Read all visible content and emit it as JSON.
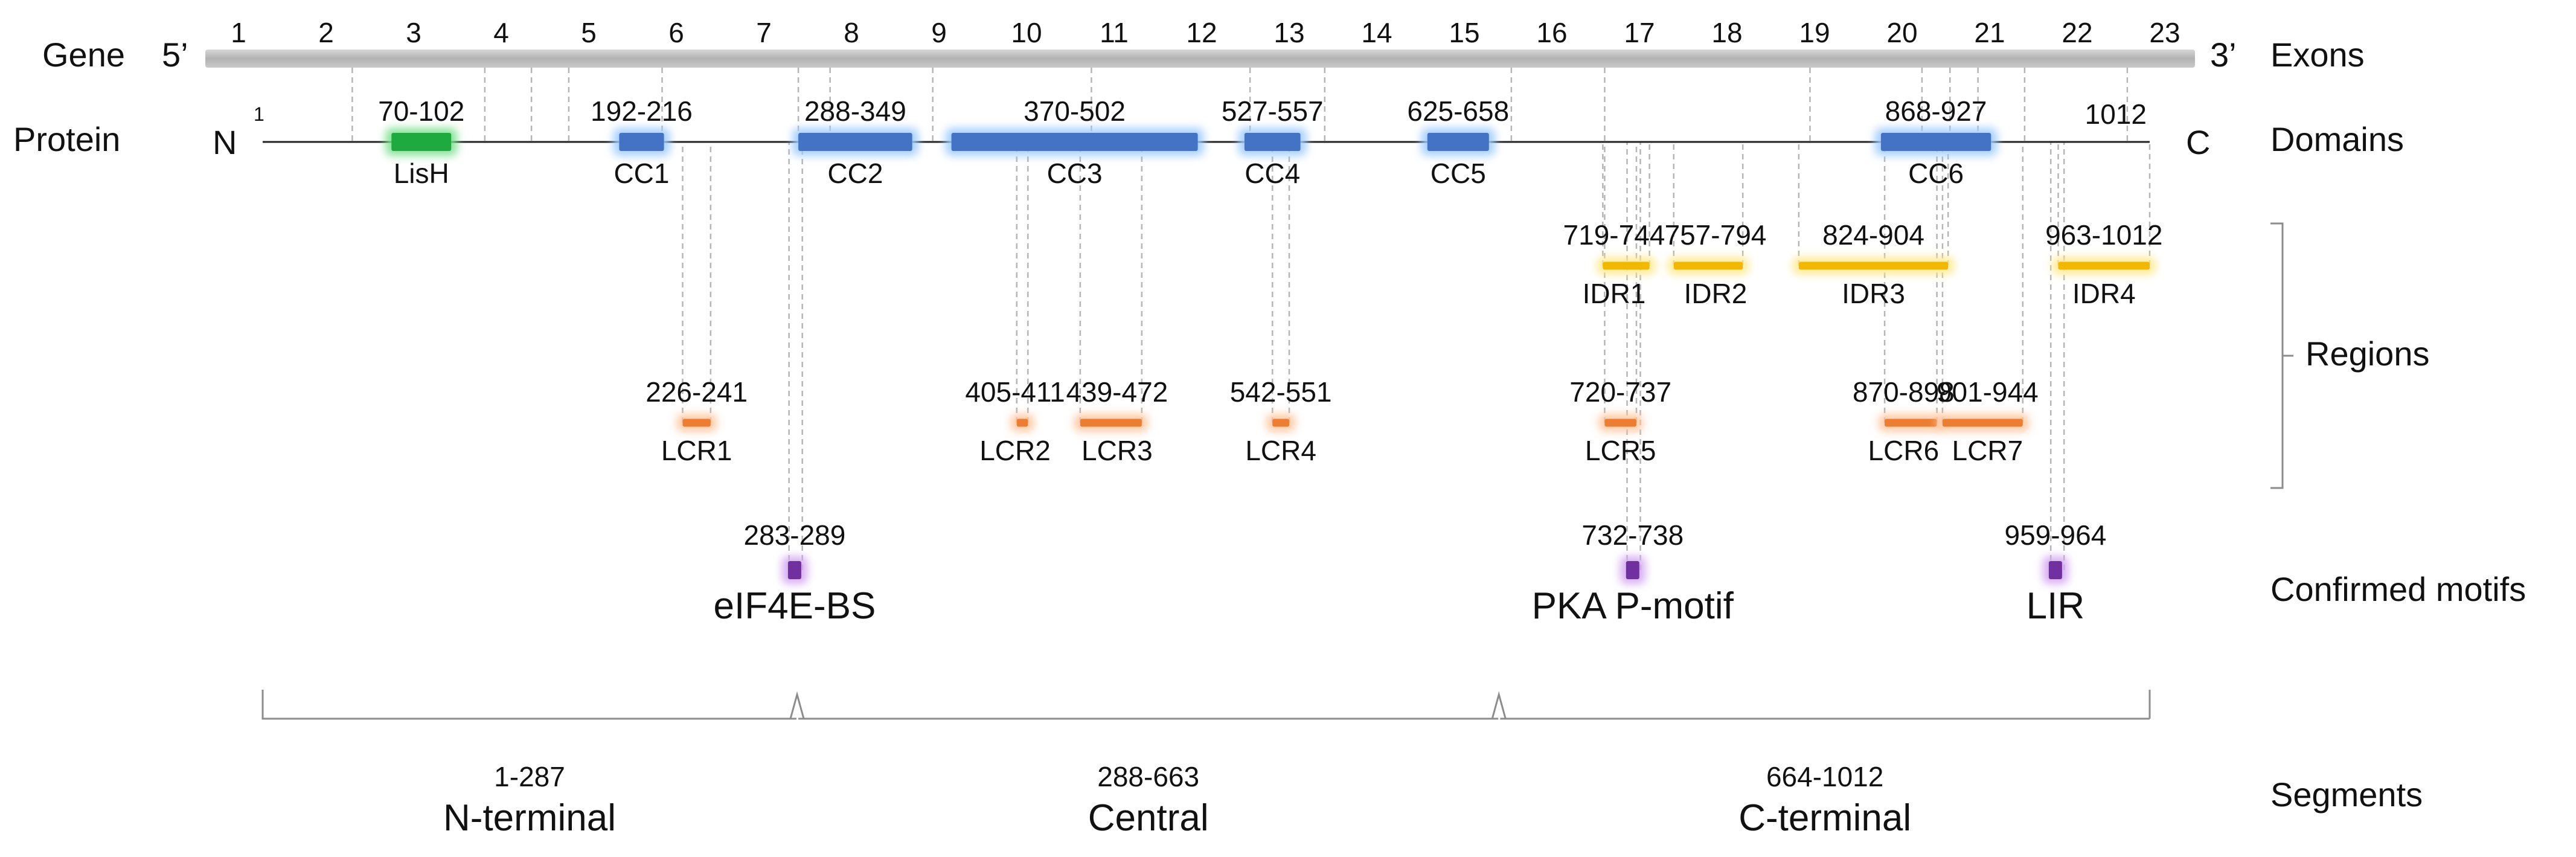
{
  "protein_length": 1012,
  "gene": {
    "label": "Gene",
    "five_prime": "5’",
    "three_prime": "3’",
    "exons_heading": "Exons",
    "exon_numbers": [
      "1",
      "2",
      "3",
      "4",
      "5",
      "6",
      "7",
      "8",
      "9",
      "10",
      "11",
      "12",
      "13",
      "14",
      "15",
      "16",
      "17",
      "18",
      "19",
      "20",
      "21",
      "22",
      "23"
    ],
    "exon_boundaries_aa": [
      49,
      120,
      145,
      165,
      215,
      288,
      305,
      360,
      445,
      530,
      570,
      670,
      720,
      830,
      890,
      905,
      920,
      945,
      1000
    ]
  },
  "protein": {
    "label": "Protein",
    "n_terminus": "N",
    "c_terminus": "C",
    "start_label": "1",
    "end_label": "1012",
    "domains_heading": "Domains"
  },
  "domains": [
    {
      "name": "LisH",
      "range": "70-102",
      "start": 70,
      "end": 102,
      "color": "#1faa3f",
      "glow": "#7de08f"
    },
    {
      "name": "CC1",
      "range": "192-216",
      "start": 192,
      "end": 216,
      "color": "#4472c4",
      "glow": "#9ecbff"
    },
    {
      "name": "CC2",
      "range": "288-349",
      "start": 288,
      "end": 349,
      "color": "#4472c4",
      "glow": "#9ecbff"
    },
    {
      "name": "CC3",
      "range": "370-502",
      "start": 370,
      "end": 502,
      "color": "#4472c4",
      "glow": "#9ecbff"
    },
    {
      "name": "CC4",
      "range": "527-557",
      "start": 527,
      "end": 557,
      "color": "#4472c4",
      "glow": "#9ecbff"
    },
    {
      "name": "CC5",
      "range": "625-658",
      "start": 625,
      "end": 658,
      "color": "#4472c4",
      "glow": "#9ecbff"
    },
    {
      "name": "CC6",
      "range": "868-927",
      "start": 868,
      "end": 927,
      "color": "#4472c4",
      "glow": "#9ecbff"
    }
  ],
  "regions_heading": "Regions",
  "idrs": [
    {
      "name": "IDR1",
      "range": "719-744",
      "start": 719,
      "end": 744
    },
    {
      "name": "IDR2",
      "range": "757-794",
      "start": 757,
      "end": 794
    },
    {
      "name": "IDR3",
      "range": "824-904",
      "start": 824,
      "end": 904
    },
    {
      "name": "IDR4",
      "range": "963-1012",
      "start": 963,
      "end": 1012
    }
  ],
  "idr_color": "#f2b800",
  "idr_glow": "#ffe98a",
  "lcrs": [
    {
      "name": "LCR1",
      "range": "226-241",
      "start": 226,
      "end": 241
    },
    {
      "name": "LCR2",
      "range": "405-411",
      "start": 405,
      "end": 411
    },
    {
      "name": "LCR3",
      "range": "439-472",
      "start": 439,
      "end": 472
    },
    {
      "name": "LCR4",
      "range": "542-551",
      "start": 542,
      "end": 551
    },
    {
      "name": "LCR5",
      "range": "720-737",
      "start": 720,
      "end": 737
    },
    {
      "name": "LCR6",
      "range": "870-898",
      "start": 870,
      "end": 898
    },
    {
      "name": "LCR7",
      "range": "901-944",
      "start": 901,
      "end": 944
    }
  ],
  "lcr_color": "#ed7d31",
  "lcr_glow": "#ffc49a",
  "motifs_heading": "Confirmed motifs",
  "motifs": [
    {
      "name": "eIF4E-BS",
      "range": "283-289",
      "start": 283,
      "end": 289
    },
    {
      "name": "PKA P-motif",
      "range": "732-738",
      "start": 732,
      "end": 738
    },
    {
      "name": "LIR",
      "range": "959-964",
      "start": 959,
      "end": 964
    }
  ],
  "motif_color": "#7030a0",
  "motif_glow": "#d3a6f0",
  "segments_heading": "Segments",
  "segments": [
    {
      "name": "N-terminal",
      "range": "1-287",
      "start": 1,
      "end": 287
    },
    {
      "name": "Central",
      "range": "288-663",
      "start": 288,
      "end": 663
    },
    {
      "name": "C-terminal",
      "range": "664-1012",
      "start": 664,
      "end": 1012
    }
  ]
}
